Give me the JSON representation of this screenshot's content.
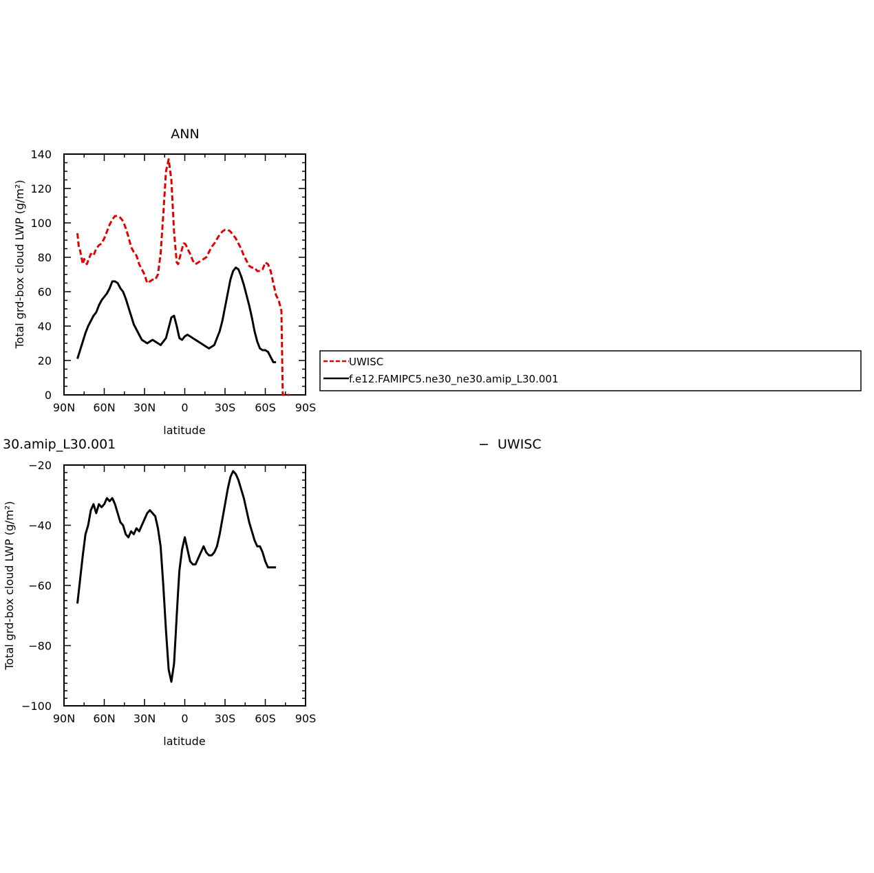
{
  "chart_data": [
    {
      "type": "line",
      "title": "ANN",
      "xlabel": "latitude",
      "ylabel": "Total grd-box cloud LWP (g/m²)",
      "xlim": [
        90,
        -90
      ],
      "ylim": [
        0,
        140
      ],
      "x_ticks": [
        90,
        60,
        30,
        0,
        -30,
        -60,
        -90
      ],
      "x_tick_labels": [
        "90N",
        "60N",
        "30N",
        "0",
        "30S",
        "60S",
        "90S"
      ],
      "y_ticks": [
        0,
        20,
        40,
        60,
        80,
        100,
        120,
        140
      ],
      "y_tick_labels": [
        "0",
        "20",
        "40",
        "60",
        "80",
        "100",
        "120",
        "140"
      ],
      "legend_position": "right",
      "series": [
        {
          "name": "UWISC",
          "color": "#e00000",
          "style": "dashed",
          "x": [
            80,
            79,
            78,
            77,
            76,
            75,
            73,
            70,
            68,
            66,
            64,
            62,
            60,
            58,
            56,
            54,
            52,
            50,
            48,
            46,
            44,
            42,
            40,
            38,
            36,
            34,
            32,
            30,
            28,
            26,
            24,
            22,
            20,
            18,
            16,
            14,
            12,
            10,
            8,
            6,
            5,
            4,
            3,
            2,
            1,
            0,
            -1,
            -2,
            -4,
            -6,
            -8,
            -10,
            -12,
            -14,
            -16,
            -18,
            -20,
            -22,
            -25,
            -28,
            -30,
            -32,
            -34,
            -36,
            -38,
            -40,
            -42,
            -44,
            -46,
            -48,
            -50,
            -52,
            -54,
            -56,
            -58,
            -60,
            -62,
            -64,
            -66,
            -68,
            -70,
            -71,
            -72,
            -73,
            -74,
            -76,
            -78
          ],
          "y": [
            94,
            86,
            84,
            80,
            76,
            79,
            76,
            82,
            81,
            85,
            87,
            88,
            91,
            95,
            99,
            102,
            104,
            104,
            103,
            101,
            97,
            92,
            86,
            83,
            81,
            76,
            73,
            70,
            65,
            66,
            67,
            67,
            70,
            82,
            105,
            130,
            137,
            125,
            95,
            77,
            76,
            79,
            82,
            85,
            88,
            88,
            87,
            85,
            82,
            78,
            76,
            77,
            78,
            79,
            80,
            83,
            86,
            88,
            92,
            95,
            96,
            96,
            95,
            93,
            91,
            88,
            85,
            81,
            78,
            75,
            74,
            74,
            72,
            72,
            73,
            77,
            76,
            72,
            65,
            58,
            55,
            52,
            49,
            0,
            0,
            0,
            0
          ]
        },
        {
          "name": "f.e12.FAMIPC5.ne30_ne30.amip_L30.001",
          "color": "#000000",
          "style": "solid",
          "x": [
            80,
            78,
            76,
            74,
            72,
            70,
            68,
            66,
            64,
            62,
            60,
            58,
            56,
            54,
            52,
            50,
            48,
            46,
            44,
            42,
            40,
            38,
            36,
            34,
            32,
            30,
            28,
            26,
            24,
            22,
            20,
            18,
            16,
            14,
            12,
            10,
            8,
            6,
            4,
            2,
            0,
            -2,
            -4,
            -6,
            -8,
            -10,
            -12,
            -14,
            -16,
            -18,
            -20,
            -22,
            -24,
            -26,
            -28,
            -30,
            -32,
            -34,
            -36,
            -38,
            -40,
            -42,
            -44,
            -46,
            -48,
            -50,
            -52,
            -54,
            -56,
            -58,
            -60,
            -62,
            -64,
            -66,
            -68
          ],
          "y": [
            21,
            26,
            31,
            36,
            40,
            43,
            46,
            48,
            52,
            55,
            57,
            59,
            62,
            66,
            66,
            65,
            62,
            60,
            56,
            51,
            46,
            41,
            38,
            35,
            32,
            31,
            30,
            31,
            32,
            31,
            30,
            29,
            31,
            33,
            39,
            45,
            46,
            40,
            33,
            32,
            34,
            35,
            34,
            33,
            32,
            31,
            30,
            29,
            28,
            27,
            28,
            29,
            33,
            37,
            43,
            51,
            59,
            67,
            72,
            74,
            73,
            69,
            64,
            58,
            52,
            45,
            37,
            31,
            27,
            26,
            26,
            25,
            22,
            19,
            19
          ]
        }
      ]
    },
    {
      "type": "line",
      "title": "30.amip_L30.001",
      "subtitle": "UWISC",
      "subtitle_prefix": "−",
      "xlabel": "latitude",
      "ylabel": "Total grd-box cloud LWP (g/m²)",
      "xlim": [
        90,
        -90
      ],
      "ylim": [
        -100,
        -20
      ],
      "x_ticks": [
        90,
        60,
        30,
        0,
        -30,
        -60,
        -90
      ],
      "x_tick_labels": [
        "90N",
        "60N",
        "30N",
        "0",
        "30S",
        "60S",
        "90S"
      ],
      "y_ticks": [
        -100,
        -80,
        -60,
        -40,
        -20
      ],
      "y_tick_labels": [
        "−100",
        "−80",
        "−60",
        "−40",
        "−20"
      ],
      "series": [
        {
          "color": "#000000",
          "style": "solid",
          "x": [
            80,
            78,
            76,
            74,
            72,
            70,
            68,
            66,
            64,
            62,
            60,
            58,
            56,
            54,
            52,
            50,
            48,
            46,
            44,
            42,
            40,
            38,
            36,
            34,
            32,
            30,
            28,
            26,
            24,
            22,
            20,
            18,
            16,
            14,
            12,
            10,
            8,
            7,
            6,
            5,
            4,
            2,
            0,
            -2,
            -4,
            -6,
            -8,
            -10,
            -12,
            -14,
            -16,
            -18,
            -20,
            -22,
            -24,
            -26,
            -28,
            -30,
            -32,
            -34,
            -36,
            -38,
            -40,
            -42,
            -44,
            -46,
            -48,
            -50,
            -52,
            -54,
            -56,
            -58,
            -60,
            -62,
            -64,
            -66,
            -68
          ],
          "y": [
            -66,
            -58,
            -50,
            -43,
            -40,
            -35,
            -33,
            -36,
            -33,
            -34,
            -33,
            -31,
            -32,
            -31,
            -33,
            -36,
            -39,
            -40,
            -43,
            -44,
            -42,
            -43,
            -41,
            -42,
            -40,
            -38,
            -36,
            -35,
            -36,
            -37,
            -41,
            -47,
            -60,
            -75,
            -88,
            -92,
            -86,
            -78,
            -70,
            -62,
            -55,
            -48,
            -44,
            -48,
            -52,
            -53,
            -53,
            -51,
            -49,
            -47,
            -49,
            -50,
            -50,
            -49,
            -47,
            -43,
            -38,
            -33,
            -28,
            -24,
            -22,
            -23,
            -25,
            -28,
            -31,
            -35,
            -39,
            -42,
            -45,
            -47,
            -47,
            -49,
            -52,
            -54,
            -54,
            -54,
            -54
          ]
        }
      ]
    }
  ],
  "legend": {
    "entries": [
      {
        "label": "UWISC",
        "color": "#e00000",
        "style": "dashed"
      },
      {
        "label": "f.e12.FAMIPC5.ne30_ne30.amip_L30.001",
        "color": "#000000",
        "style": "solid"
      }
    ]
  }
}
